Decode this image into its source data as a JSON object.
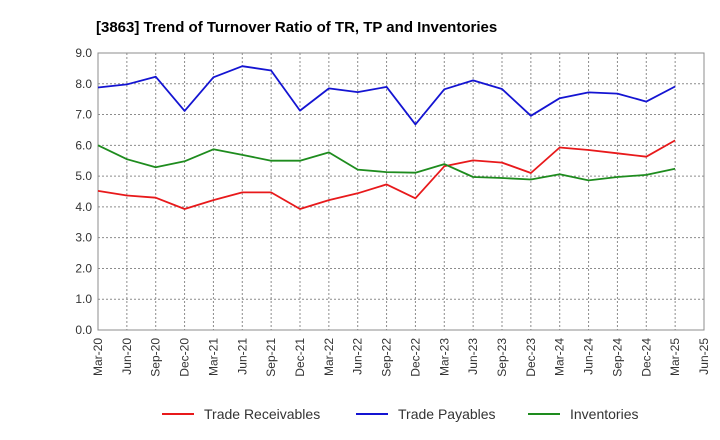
{
  "chart_data": {
    "type": "line",
    "title": "[3863]  Trend of Turnover Ratio of TR, TP and Inventories",
    "xlabel": "",
    "ylabel": "",
    "x": [
      "Mar-20",
      "Jun-20",
      "Sep-20",
      "Dec-20",
      "Mar-21",
      "Jun-21",
      "Sep-21",
      "Dec-21",
      "Mar-22",
      "Jun-22",
      "Sep-22",
      "Dec-22",
      "Mar-23",
      "Jun-23",
      "Sep-23",
      "Dec-23",
      "Mar-24",
      "Jun-24",
      "Sep-24",
      "Dec-24",
      "Mar-25",
      "Jun-25"
    ],
    "ylim": [
      0,
      9
    ],
    "yticks": [
      "0.0",
      "1.0",
      "2.0",
      "3.0",
      "4.0",
      "5.0",
      "6.0",
      "7.0",
      "8.0",
      "9.0"
    ],
    "grid": true,
    "legend_position": "bottom",
    "series": [
      {
        "name": "Trade Receivables",
        "color": "#e8191b",
        "values": [
          4.52,
          4.37,
          4.3,
          3.93,
          4.22,
          4.47,
          4.47,
          3.93,
          4.22,
          4.44,
          4.73,
          4.28,
          5.32,
          5.51,
          5.44,
          5.1,
          5.93,
          5.85,
          5.74,
          5.63,
          6.16,
          null
        ]
      },
      {
        "name": "Trade Payables",
        "color": "#1414d2",
        "values": [
          7.88,
          7.98,
          8.23,
          7.12,
          8.21,
          8.57,
          8.43,
          7.13,
          7.85,
          7.73,
          7.9,
          6.68,
          7.82,
          8.11,
          7.83,
          6.96,
          7.53,
          7.72,
          7.68,
          7.42,
          7.91,
          null
        ]
      },
      {
        "name": "Inventories",
        "color": "#1e8c1e",
        "values": [
          6.0,
          5.55,
          5.29,
          5.48,
          5.87,
          5.69,
          5.5,
          5.5,
          5.77,
          5.21,
          5.13,
          5.11,
          5.39,
          4.97,
          4.94,
          4.89,
          5.06,
          4.86,
          4.97,
          5.04,
          5.24,
          null
        ]
      }
    ]
  }
}
